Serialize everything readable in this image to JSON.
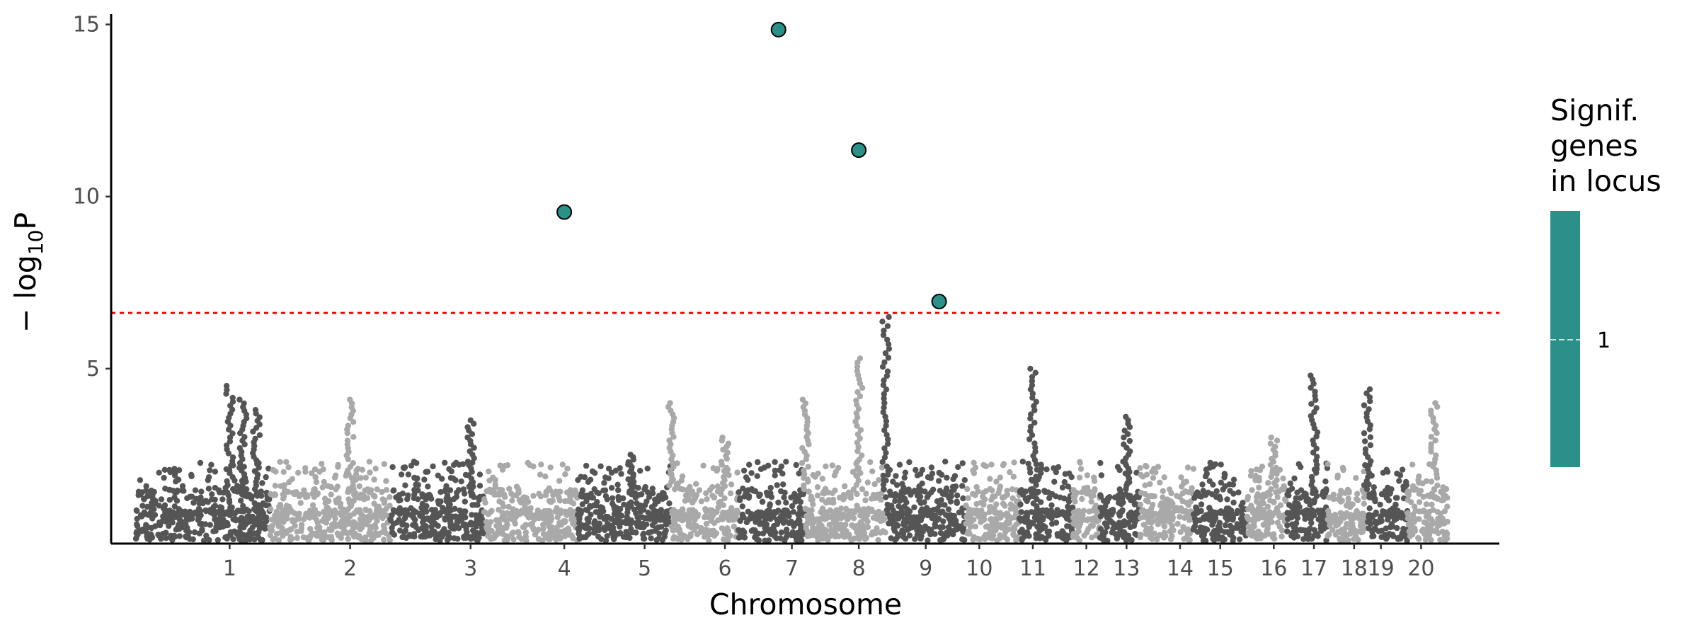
{
  "chart_data": {
    "type": "scatter",
    "subtype": "manhattan",
    "xlabel": "Chromosome",
    "ylabel_prefix": "− log",
    "ylabel_subscript": "10",
    "ylabel_suffix": "P",
    "ylim": [
      0,
      15.3
    ],
    "y_ticks": [
      5,
      10,
      15
    ],
    "grid": false,
    "threshold": {
      "value": 6.62,
      "color": "#ff0000",
      "style": "dotted"
    },
    "colors": {
      "dark": "#555555",
      "light": "#a9a9a9",
      "highlight": "#2a9088"
    },
    "chromosomes": [
      {
        "label": "1",
        "start": 0.0,
        "end": 0.1,
        "center": 0.07,
        "shade": "dark"
      },
      {
        "label": "2",
        "start": 0.1,
        "end": 0.19,
        "center": 0.16,
        "shade": "light"
      },
      {
        "label": "3",
        "start": 0.19,
        "end": 0.26,
        "center": 0.25,
        "shade": "dark"
      },
      {
        "label": "4",
        "start": 0.26,
        "end": 0.33,
        "center": 0.32,
        "shade": "light"
      },
      {
        "label": "5",
        "start": 0.33,
        "end": 0.4,
        "center": 0.38,
        "shade": "dark"
      },
      {
        "label": "6",
        "start": 0.4,
        "end": 0.45,
        "center": 0.44,
        "shade": "light"
      },
      {
        "label": "7",
        "start": 0.45,
        "end": 0.5,
        "center": 0.49,
        "shade": "dark"
      },
      {
        "label": "8",
        "start": 0.5,
        "end": 0.56,
        "center": 0.54,
        "shade": "light"
      },
      {
        "label": "9",
        "start": 0.56,
        "end": 0.62,
        "center": 0.59,
        "shade": "dark"
      },
      {
        "label": "10",
        "start": 0.62,
        "end": 0.66,
        "center": 0.63,
        "shade": "light"
      },
      {
        "label": "11",
        "start": 0.66,
        "end": 0.7,
        "center": 0.67,
        "shade": "dark"
      },
      {
        "label": "12",
        "start": 0.7,
        "end": 0.72,
        "center": 0.71,
        "shade": "light"
      },
      {
        "label": "13",
        "start": 0.72,
        "end": 0.75,
        "center": 0.74,
        "shade": "dark"
      },
      {
        "label": "14",
        "start": 0.75,
        "end": 0.79,
        "center": 0.78,
        "shade": "light"
      },
      {
        "label": "15",
        "start": 0.79,
        "end": 0.83,
        "center": 0.81,
        "shade": "dark"
      },
      {
        "label": "16",
        "start": 0.83,
        "end": 0.86,
        "center": 0.85,
        "shade": "light"
      },
      {
        "label": "17",
        "start": 0.86,
        "end": 0.89,
        "center": 0.88,
        "shade": "dark"
      },
      {
        "label": "18",
        "start": 0.89,
        "end": 0.92,
        "center": 0.91,
        "shade": "light"
      },
      {
        "label": "19",
        "start": 0.92,
        "end": 0.95,
        "center": 0.93,
        "shade": "dark"
      },
      {
        "label": "20",
        "start": 0.95,
        "end": 0.98,
        "center": 0.96,
        "shade": "light"
      }
    ],
    "peaks": [
      {
        "pos": 0.07,
        "y": 4.5
      },
      {
        "pos": 0.08,
        "y": 4.1
      },
      {
        "pos": 0.09,
        "y": 3.8
      },
      {
        "pos": 0.16,
        "y": 4.1
      },
      {
        "pos": 0.25,
        "y": 3.5
      },
      {
        "pos": 0.37,
        "y": 2.5
      },
      {
        "pos": 0.4,
        "y": 4.0
      },
      {
        "pos": 0.44,
        "y": 3.0
      },
      {
        "pos": 0.5,
        "y": 4.1
      },
      {
        "pos": 0.54,
        "y": 5.3
      },
      {
        "pos": 0.56,
        "y": 6.5
      },
      {
        "pos": 0.67,
        "y": 5.0
      },
      {
        "pos": 0.74,
        "y": 3.6
      },
      {
        "pos": 0.85,
        "y": 3.0
      },
      {
        "pos": 0.88,
        "y": 4.8
      },
      {
        "pos": 0.92,
        "y": 4.4
      },
      {
        "pos": 0.97,
        "y": 4.0
      }
    ],
    "significant": [
      {
        "pos": 0.32,
        "y": 9.55
      },
      {
        "pos": 0.48,
        "y": 14.85
      },
      {
        "pos": 0.54,
        "y": 11.35
      },
      {
        "pos": 0.6,
        "y": 6.95
      }
    ],
    "legend": {
      "title_lines": [
        "Signif.",
        "genes",
        "in locus"
      ],
      "label": "1",
      "color": "#2a9088",
      "position": "right"
    }
  }
}
